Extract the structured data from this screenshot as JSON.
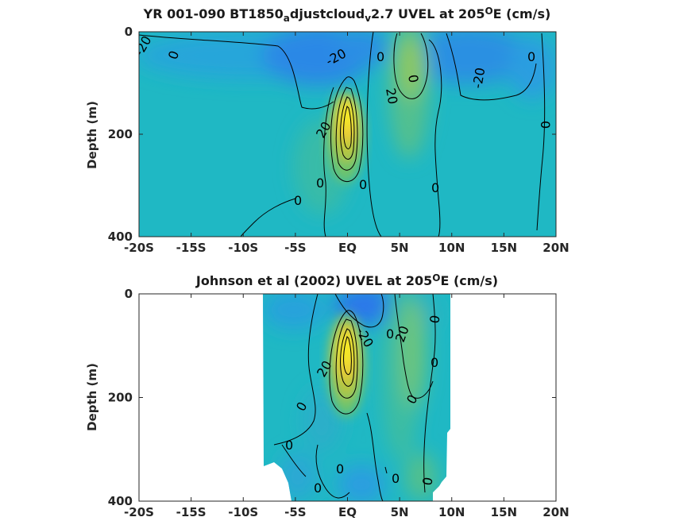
{
  "chart_data": [
    {
      "type": "heatmap",
      "subtype": "filled-contour",
      "title": "YR 001-090 BT1850_adjustcloud_v2.7 UVEL at 205^OE (cm/s)",
      "title_parts": {
        "main": "YR 001-090 BT1850",
        "sub1": "a",
        "mid": "djustcloud",
        "sub2": "v",
        "tail": "2.7 UVEL at 205",
        "sup": "O",
        "end": "E (cm/s)"
      },
      "ylabel": "Depth (m)",
      "xlabel": "",
      "x_ticks": [
        "-20S",
        "-15S",
        "-10S",
        "-5S",
        "EQ",
        "5N",
        "10N",
        "15N",
        "20N"
      ],
      "x_tick_values": [
        -20,
        -15,
        -10,
        -5,
        0,
        5,
        10,
        15,
        20
      ],
      "y_ticks": [
        "0",
        "200",
        "400"
      ],
      "y_tick_values": [
        0,
        200,
        400
      ],
      "xlim": [
        -20,
        20
      ],
      "ylim": [
        400,
        0
      ],
      "y_reversed": true,
      "data_extent_x": [
        -20,
        20
      ],
      "colormap": "parula",
      "color_range_cm_s": [
        -60,
        100
      ],
      "contour_interval_cm_s": 20,
      "contour_labels": [
        "-20",
        "0",
        "-20",
        "0",
        "20",
        "0",
        "-20",
        "0",
        "20",
        "0",
        "0",
        "0",
        "0"
      ],
      "features": [
        {
          "name": "equatorial undercurrent core",
          "lat": 0,
          "depth": 160,
          "max_u": 100
        },
        {
          "name": "eastward jet",
          "lat": 6,
          "depth": 80,
          "max_u": 40
        },
        {
          "name": "westward flow",
          "lat": -3,
          "depth": 30,
          "min_u": -50
        },
        {
          "name": "westward flow",
          "lat": 14,
          "depth": 30,
          "min_u": -40
        }
      ]
    },
    {
      "type": "heatmap",
      "subtype": "filled-contour",
      "title": "Johnson et al (2002) UVEL at 205^OE (cm/s)",
      "title_parts": {
        "main": "Johnson et al (2002) UVEL at 205",
        "sup": "O",
        "end": "E (cm/s)"
      },
      "ylabel": "Depth (m)",
      "xlabel": "",
      "x_ticks": [
        "-20S",
        "-15S",
        "-10S",
        "-5S",
        "EQ",
        "5N",
        "10N",
        "15N",
        "20N"
      ],
      "x_tick_values": [
        -20,
        -15,
        -10,
        -5,
        0,
        5,
        10,
        15,
        20
      ],
      "y_ticks": [
        "0",
        "200",
        "400"
      ],
      "y_tick_values": [
        0,
        200,
        400
      ],
      "xlim": [
        -20,
        20
      ],
      "ylim": [
        400,
        0
      ],
      "y_reversed": true,
      "data_extent_x": [
        -8,
        10
      ],
      "colormap": "parula",
      "color_range_cm_s": [
        -60,
        100
      ],
      "contour_interval_cm_s": 20,
      "contour_labels": [
        "-20",
        "0",
        "20",
        "0",
        "0",
        "0",
        "0",
        "0",
        "20",
        "0",
        "0",
        "0",
        "0",
        "0"
      ],
      "features": [
        {
          "name": "equatorial undercurrent core",
          "lat": 0,
          "depth": 140,
          "max_u": 100
        },
        {
          "name": "eastward jet",
          "lat": 6,
          "depth": 150,
          "max_u": 30
        },
        {
          "name": "westward flow",
          "lat": 1,
          "depth": 20,
          "min_u": -50
        }
      ]
    }
  ],
  "colors": {
    "background": "#1fb8c4",
    "negative_deep": "#2a82e8",
    "negative": "#2aa0e0",
    "positive_weak": "#6cc67a",
    "positive": "#c9c734",
    "positive_strong": "#fad92e",
    "max": "#fcf51a",
    "contour_line": "#000000",
    "axis": "#262626"
  }
}
